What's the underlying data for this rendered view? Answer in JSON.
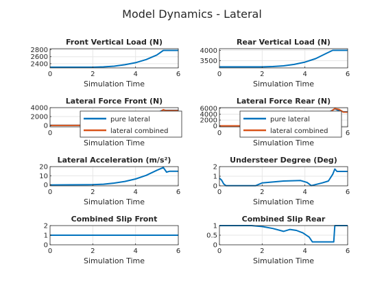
{
  "figure_title": "Model Dynamics - Lateral",
  "colors": {
    "blue": "#0072bd",
    "orange": "#d95319",
    "axis": "#262626",
    "grid": "#e6e6e6"
  },
  "chart_data": [
    {
      "type": "line",
      "title": "Front Vertical Load (N)",
      "xlabel": "Simulation Time",
      "xlim": [
        0,
        6
      ],
      "ylim": [
        2280,
        2830
      ],
      "xticks": [
        0,
        2,
        4,
        6
      ],
      "yticks": [
        2400,
        2600,
        2800
      ],
      "grid": true,
      "series": [
        {
          "color": "blue",
          "x": [
            0,
            1,
            2,
            2.5,
            3,
            3.5,
            4,
            4.5,
            5,
            5.3,
            5.5,
            6
          ],
          "y": [
            2300,
            2300,
            2300,
            2310,
            2330,
            2370,
            2430,
            2520,
            2650,
            2780,
            2780,
            2780
          ]
        }
      ]
    },
    {
      "type": "line",
      "title": "Rear Vertical Load (N)",
      "xlabel": "Simulation Time",
      "xlim": [
        0,
        6
      ],
      "ylim": [
        3150,
        4080
      ],
      "xticks": [
        0,
        2,
        4,
        6
      ],
      "yticks": [
        3500,
        4000
      ],
      "grid": true,
      "series": [
        {
          "color": "blue",
          "x": [
            0,
            1,
            2,
            2.5,
            3,
            3.5,
            4,
            4.5,
            5,
            5.3,
            5.5,
            6
          ],
          "y": [
            3200,
            3200,
            3200,
            3215,
            3250,
            3320,
            3430,
            3600,
            3850,
            4000,
            4000,
            4000
          ]
        }
      ]
    },
    {
      "type": "line",
      "title": "Lateral Force Front (N)",
      "xlabel": "Simulation Time",
      "xlim": [
        0,
        6
      ],
      "ylim": [
        -300,
        4000
      ],
      "xticks": [
        0,
        2,
        4,
        6
      ],
      "yticks": [
        0,
        2000,
        4000
      ],
      "grid": true,
      "legend": {
        "position": "center",
        "entries": [
          "pure lateral",
          "lateral combined"
        ]
      },
      "series": [
        {
          "name": "pure lateral",
          "color": "blue",
          "x": [
            0,
            1,
            2,
            3,
            3.5,
            4,
            4.5,
            5,
            5.2,
            5.3,
            5.4,
            5.5,
            6
          ],
          "y": [
            50,
            50,
            60,
            200,
            600,
            1200,
            2000,
            2800,
            3300,
            3500,
            3400,
            3400,
            3400
          ]
        },
        {
          "name": "lateral combined",
          "color": "orange",
          "x": [
            0,
            1,
            2,
            3,
            3.5,
            4,
            4.5,
            5,
            5.2,
            5.3,
            5.4,
            5.5,
            6
          ],
          "y": [
            30,
            30,
            50,
            180,
            550,
            1100,
            1900,
            2700,
            3200,
            3550,
            3350,
            3350,
            3350
          ]
        }
      ]
    },
    {
      "type": "line",
      "title": "Lateral Force Rear (N)",
      "xlabel": "Simulation Time",
      "xlim": [
        0,
        6
      ],
      "ylim": [
        -300,
        6200
      ],
      "xticks": [
        0,
        2,
        4,
        6
      ],
      "yticks": [
        0,
        2000,
        4000,
        6000
      ],
      "grid": true,
      "legend": {
        "position": "center",
        "entries": [
          "pure lateral",
          "lateral combined"
        ]
      },
      "series": [
        {
          "name": "pure lateral",
          "color": "blue",
          "x": [
            0,
            1,
            2,
            3,
            3.5,
            4,
            4.5,
            5,
            5.2,
            5.4,
            5.6,
            5.8,
            6
          ],
          "y": [
            50,
            50,
            60,
            250,
            800,
            1600,
            2600,
            3800,
            5000,
            5800,
            5200,
            4800,
            4800
          ]
        },
        {
          "name": "lateral combined",
          "color": "orange",
          "x": [
            0,
            1,
            2,
            3,
            3.5,
            4,
            4.5,
            5,
            5.2,
            5.4,
            5.6,
            5.8,
            6
          ],
          "y": [
            40,
            40,
            50,
            220,
            750,
            1500,
            2500,
            3700,
            4800,
            5900,
            5600,
            4700,
            4700
          ]
        }
      ]
    },
    {
      "type": "line",
      "title": "Lateral Acceleration (m/s²)",
      "xlabel": "Simulation Time",
      "xlim": [
        0,
        6
      ],
      "ylim": [
        -1,
        20
      ],
      "xticks": [
        0,
        2,
        4,
        6
      ],
      "yticks": [
        0,
        10,
        20
      ],
      "grid": true,
      "series": [
        {
          "color": "blue",
          "x": [
            0,
            1,
            2,
            2.5,
            3,
            3.5,
            4,
            4.5,
            5,
            5.3,
            5.45,
            5.6,
            6
          ],
          "y": [
            0,
            0.1,
            0.3,
            0.8,
            2,
            3.8,
            6.5,
            10.5,
            16,
            19,
            14,
            15,
            15
          ]
        }
      ]
    },
    {
      "type": "line",
      "title": "Understeer Degree (Deg)",
      "xlabel": "Simulation Time",
      "xlim": [
        0,
        6
      ],
      "ylim": [
        0,
        2
      ],
      "xticks": [
        0,
        2,
        4,
        6
      ],
      "yticks": [
        0,
        1,
        2
      ],
      "grid": true,
      "series": [
        {
          "color": "blue",
          "x": [
            0,
            0.1,
            0.2,
            0.3,
            1,
            1.7,
            2,
            3,
            3.8,
            4.1,
            4.3,
            4.8,
            5.1,
            5.3,
            5.4,
            5.5,
            6
          ],
          "y": [
            0.8,
            0.6,
            0.2,
            0.02,
            0.02,
            0.02,
            0.3,
            0.5,
            0.55,
            0.35,
            0.02,
            0.3,
            0.5,
            1.2,
            1.75,
            1.5,
            1.5
          ]
        }
      ]
    },
    {
      "type": "line",
      "title": "Combined Slip Front",
      "xlabel": "Simulation Time",
      "xlim": [
        0,
        6
      ],
      "ylim": [
        0,
        2
      ],
      "xticks": [
        0,
        2,
        4,
        6
      ],
      "yticks": [
        0,
        1,
        2
      ],
      "grid": true,
      "series": [
        {
          "color": "blue",
          "x": [
            0,
            6
          ],
          "y": [
            1,
            1
          ]
        }
      ]
    },
    {
      "type": "line",
      "title": "Combined Slip Rear",
      "xlabel": "Simulation Time",
      "xlim": [
        0,
        6
      ],
      "ylim": [
        0,
        1
      ],
      "xticks": [
        0,
        2,
        4,
        6
      ],
      "yticks": [
        0,
        0.5,
        1
      ],
      "grid": true,
      "series": [
        {
          "color": "blue",
          "x": [
            0,
            1.5,
            2,
            2.5,
            3,
            3.3,
            3.6,
            3.9,
            4.2,
            4.35,
            5.35,
            5.4,
            6
          ],
          "y": [
            1,
            1,
            0.95,
            0.85,
            0.7,
            0.8,
            0.75,
            0.62,
            0.4,
            0.15,
            0.15,
            1,
            1
          ]
        }
      ]
    }
  ]
}
